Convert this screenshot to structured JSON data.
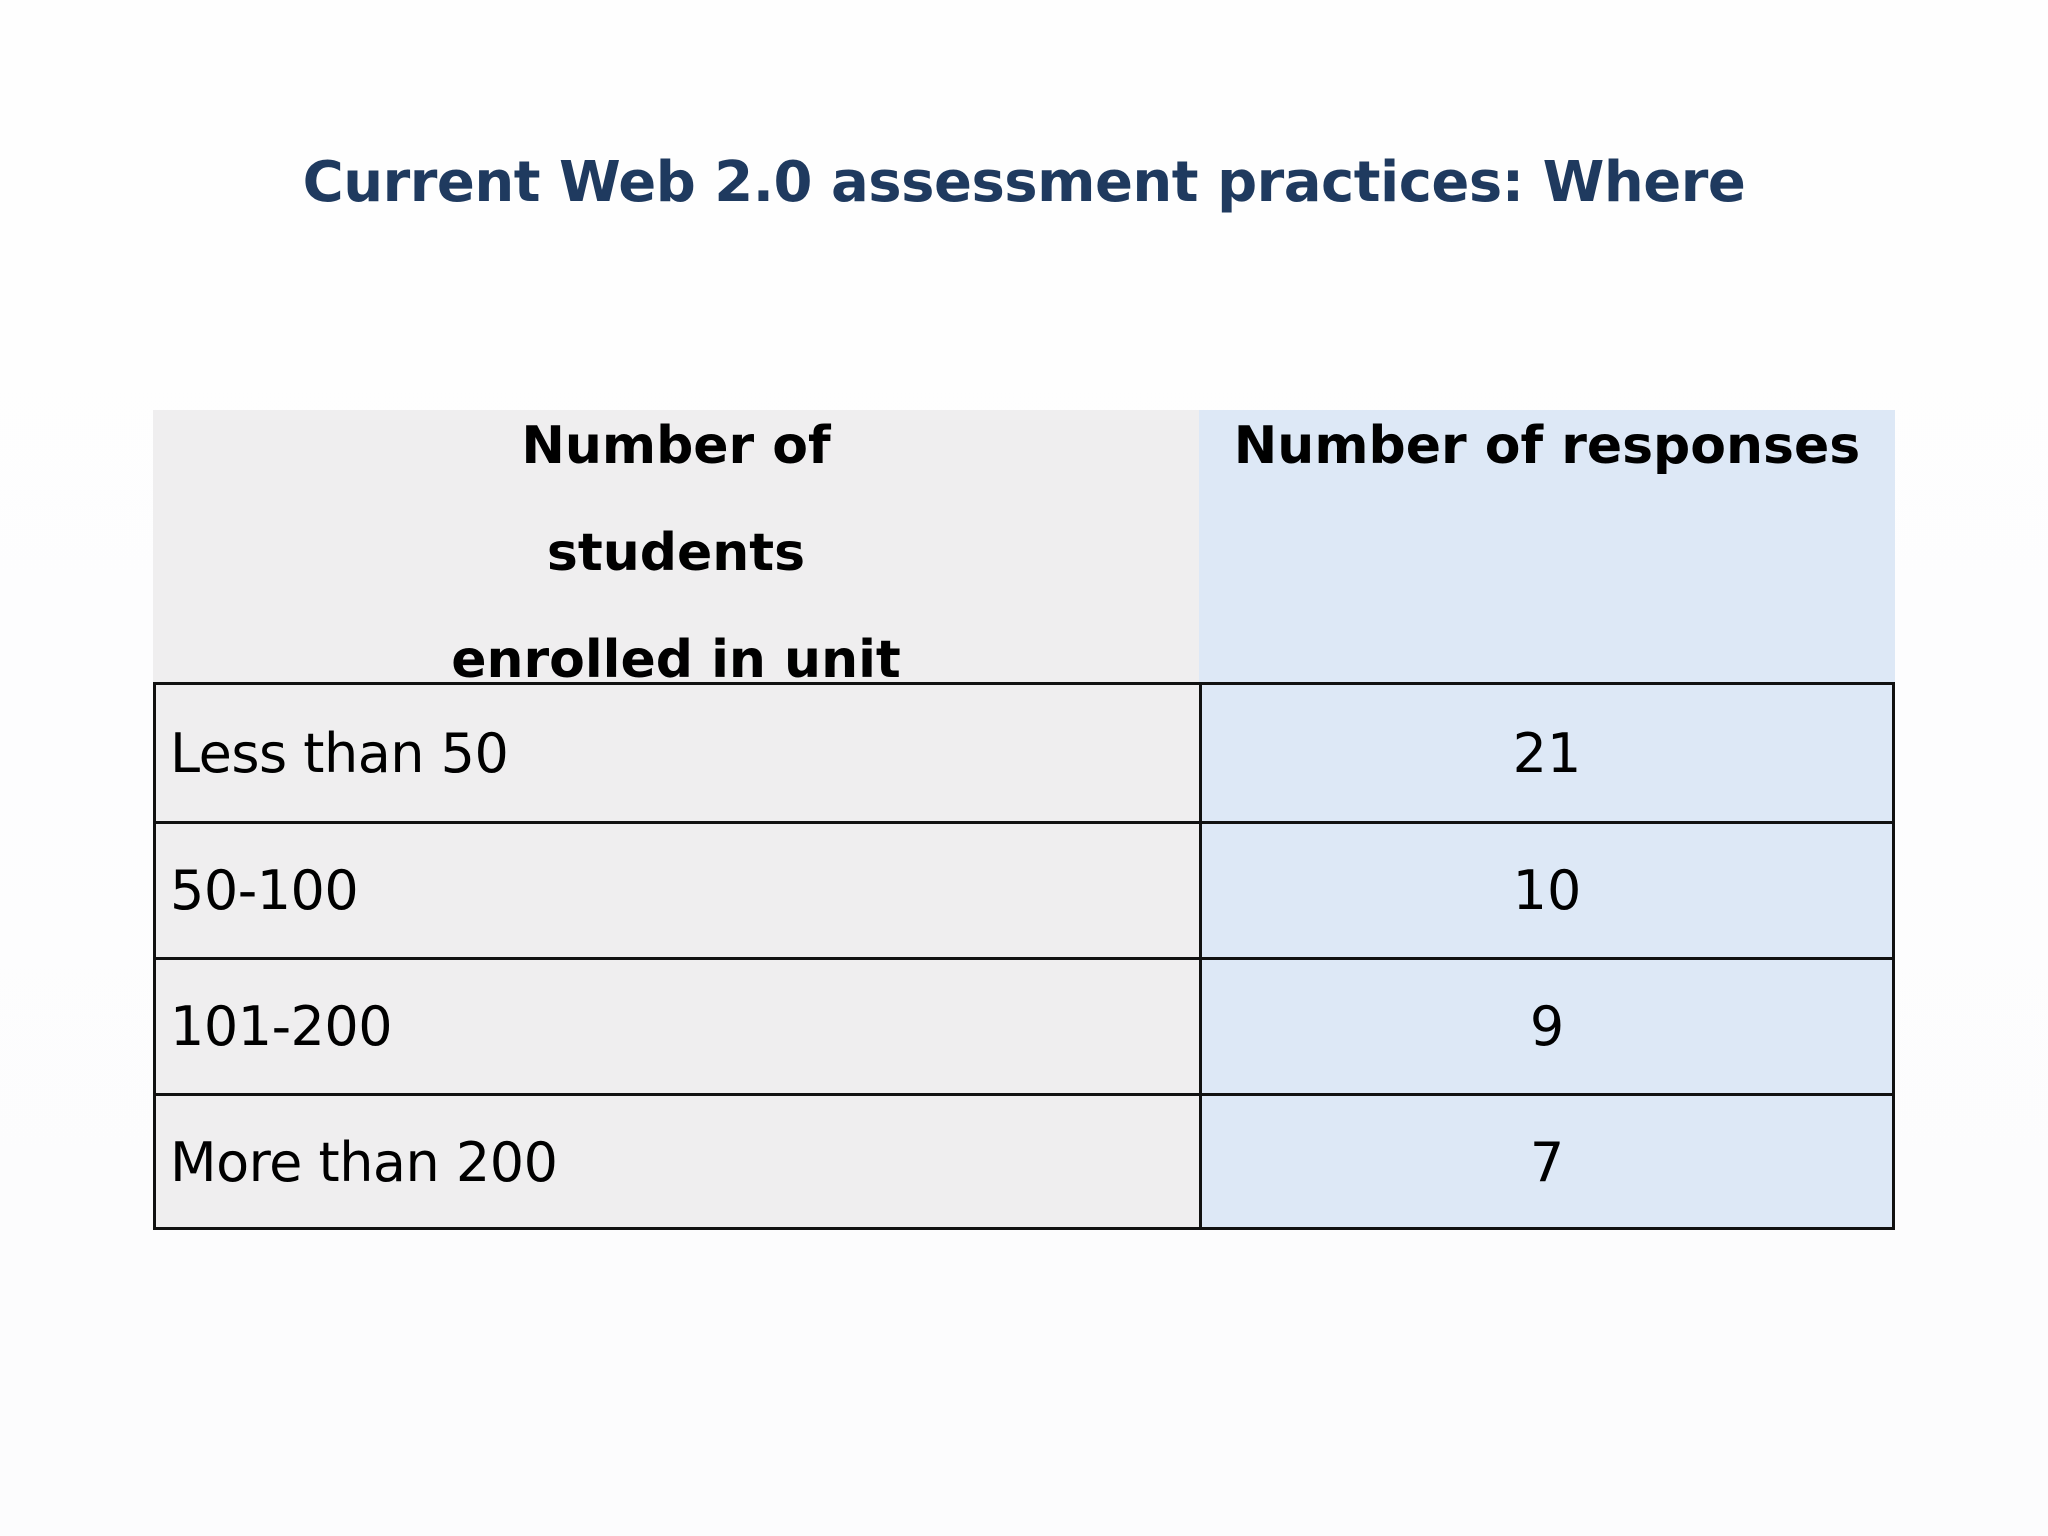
{
  "slide": {
    "title": "Current Web 2.0 assessment practices: Where"
  },
  "table": {
    "headers": {
      "students_line1": "Number of students",
      "students_line2": "enrolled in unit",
      "responses": "Number of responses"
    },
    "rows": [
      {
        "enrolled": "Less than 50",
        "responses": "21"
      },
      {
        "enrolled": "50-100",
        "responses": "10"
      },
      {
        "enrolled": "101-200",
        "responses": "9"
      },
      {
        "enrolled": "More than 200",
        "responses": "7"
      }
    ]
  },
  "colors": {
    "title": "#1f3a5f",
    "column_a_fill": "#efeeef",
    "column_b_fill": "#dde8f6",
    "border": "#111111"
  }
}
